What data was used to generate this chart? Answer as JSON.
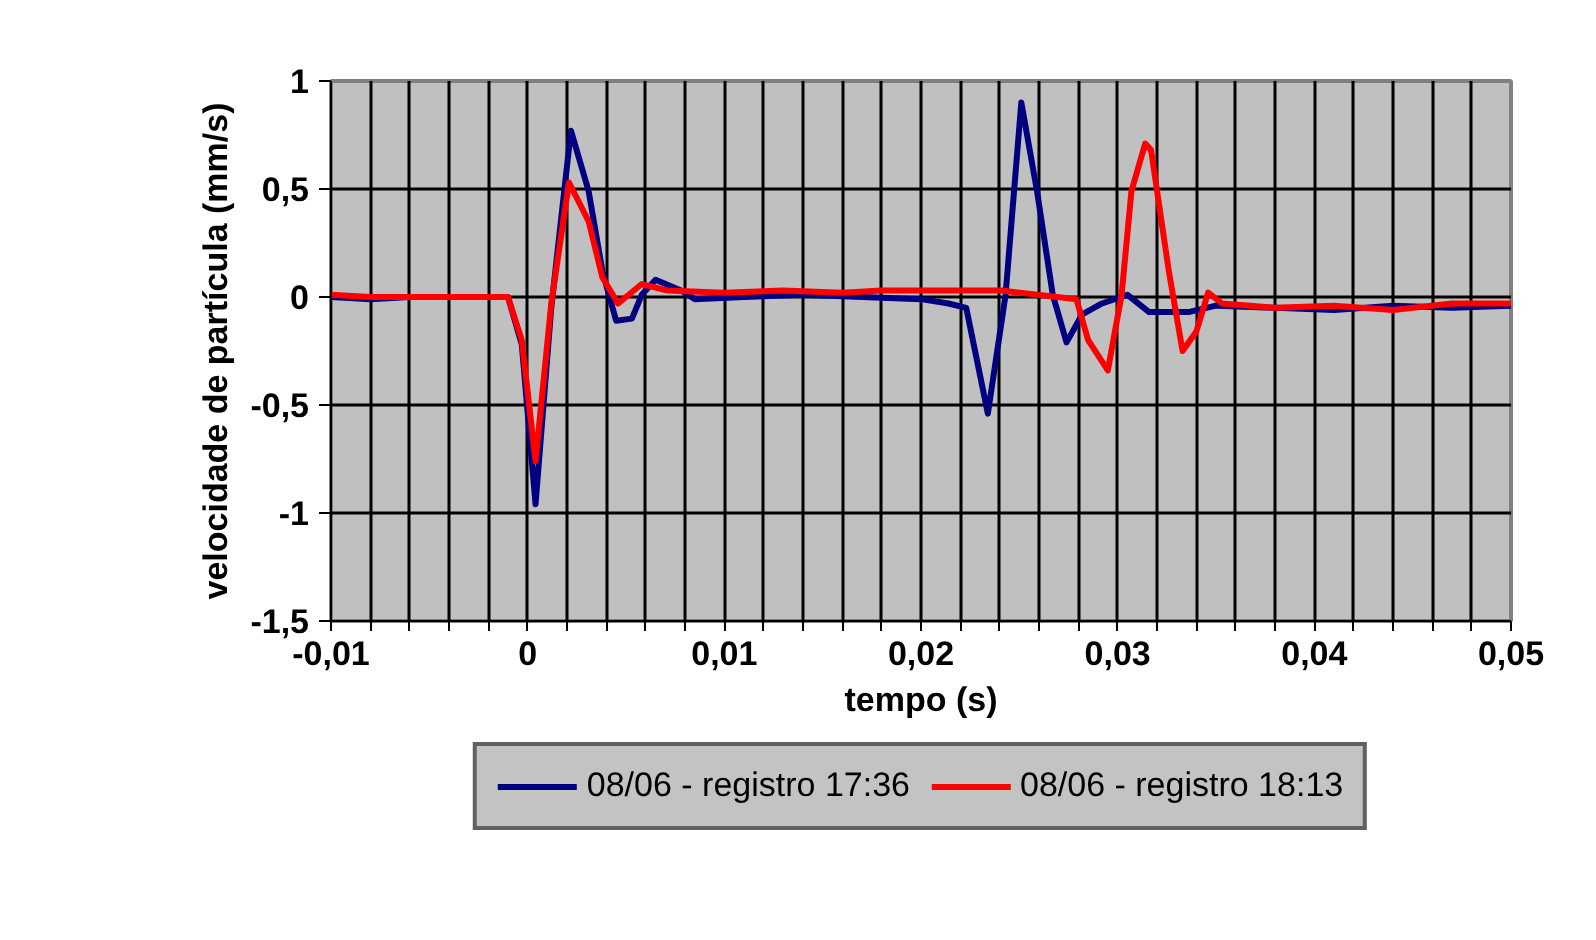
{
  "chart_data": {
    "type": "line",
    "xlabel": "tempo (s)",
    "ylabel": "velocidade de partícula (mm/s)",
    "xlim": [
      -0.01,
      0.05
    ],
    "ylim": [
      -1.5,
      1
    ],
    "xticks": [
      {
        "value": -0.01,
        "label": "-0,01"
      },
      {
        "value": -0.008,
        "label": null
      },
      {
        "value": -0.006,
        "label": null
      },
      {
        "value": -0.004,
        "label": null
      },
      {
        "value": -0.002,
        "label": null
      },
      {
        "value": 0,
        "label": "0"
      },
      {
        "value": 0.002,
        "label": null
      },
      {
        "value": 0.004,
        "label": null
      },
      {
        "value": 0.006,
        "label": null
      },
      {
        "value": 0.008,
        "label": null
      },
      {
        "value": 0.01,
        "label": "0,01"
      },
      {
        "value": 0.012,
        "label": null
      },
      {
        "value": 0.014,
        "label": null
      },
      {
        "value": 0.016,
        "label": null
      },
      {
        "value": 0.018,
        "label": null
      },
      {
        "value": 0.02,
        "label": "0,02"
      },
      {
        "value": 0.022,
        "label": null
      },
      {
        "value": 0.024,
        "label": null
      },
      {
        "value": 0.026,
        "label": null
      },
      {
        "value": 0.028,
        "label": null
      },
      {
        "value": 0.03,
        "label": "0,03"
      },
      {
        "value": 0.032,
        "label": null
      },
      {
        "value": 0.034,
        "label": null
      },
      {
        "value": 0.036,
        "label": null
      },
      {
        "value": 0.038,
        "label": null
      },
      {
        "value": 0.04,
        "label": "0,04"
      },
      {
        "value": 0.042,
        "label": null
      },
      {
        "value": 0.044,
        "label": null
      },
      {
        "value": 0.046,
        "label": null
      },
      {
        "value": 0.048,
        "label": null
      },
      {
        "value": 0.05,
        "label": "0,05"
      }
    ],
    "yticks": [
      {
        "value": -1.5,
        "label": "-1,5"
      },
      {
        "value": -1,
        "label": "-1"
      },
      {
        "value": -0.5,
        "label": "-0,5"
      },
      {
        "value": 0,
        "label": "0"
      },
      {
        "value": 0.5,
        "label": "0,5"
      },
      {
        "value": 1,
        "label": "1"
      }
    ],
    "grid": true,
    "legend": "bottom",
    "marker": "none",
    "line_style": "solid",
    "series": [
      {
        "name": "08/06 - registro 17:36",
        "color": "#000080",
        "x": [
          -0.01,
          -0.008,
          -0.006,
          -0.004,
          -0.002,
          -0.001,
          -0.0003,
          0.0004,
          0.0012,
          0.0022,
          0.0031,
          0.0038,
          0.0045,
          0.0053,
          0.0058,
          0.0065,
          0.0078,
          0.0085,
          0.011,
          0.014,
          0.017,
          0.02,
          0.0214,
          0.0223,
          0.0234,
          0.0243,
          0.0251,
          0.0259,
          0.0267,
          0.0274,
          0.0282,
          0.0292,
          0.0305,
          0.0316,
          0.0336,
          0.035,
          0.038,
          0.041,
          0.044,
          0.047,
          0.05
        ],
        "values": [
          0,
          -0.01,
          0,
          0,
          0,
          0,
          -0.22,
          -0.96,
          -0.05,
          0.77,
          0.49,
          0.12,
          -0.11,
          -0.1,
          0.01,
          0.08,
          0.03,
          -0.01,
          0,
          0.01,
          0,
          -0.01,
          -0.03,
          -0.05,
          -0.54,
          0.01,
          0.9,
          0.49,
          0.01,
          -0.21,
          -0.08,
          -0.03,
          0.01,
          -0.07,
          -0.07,
          -0.04,
          -0.05,
          -0.06,
          -0.04,
          -0.05,
          -0.04
        ]
      },
      {
        "name": "08/06 - registro 18:13",
        "color": "#ff0000",
        "x": [
          -0.01,
          -0.008,
          -0.006,
          -0.004,
          -0.002,
          -0.001,
          -0.0003,
          0.0004,
          0.0012,
          0.0021,
          0.0031,
          0.0038,
          0.0046,
          0.0058,
          0.0071,
          0.01,
          0.013,
          0.016,
          0.018,
          0.0241,
          0.0279,
          0.0285,
          0.0295,
          0.0302,
          0.0307,
          0.0314,
          0.0317,
          0.0326,
          0.0333,
          0.034,
          0.0346,
          0.0353,
          0.038,
          0.041,
          0.044,
          0.047,
          0.05
        ],
        "values": [
          0.01,
          0,
          0,
          0,
          0,
          0,
          -0.2,
          -0.76,
          -0.03,
          0.53,
          0.35,
          0.09,
          -0.03,
          0.06,
          0.03,
          0.02,
          0.03,
          0.02,
          0.03,
          0.03,
          -0.01,
          -0.2,
          -0.34,
          0.01,
          0.49,
          0.71,
          0.68,
          0.12,
          -0.25,
          -0.16,
          0.02,
          -0.03,
          -0.05,
          -0.04,
          -0.06,
          -0.03,
          -0.03
        ]
      }
    ]
  }
}
